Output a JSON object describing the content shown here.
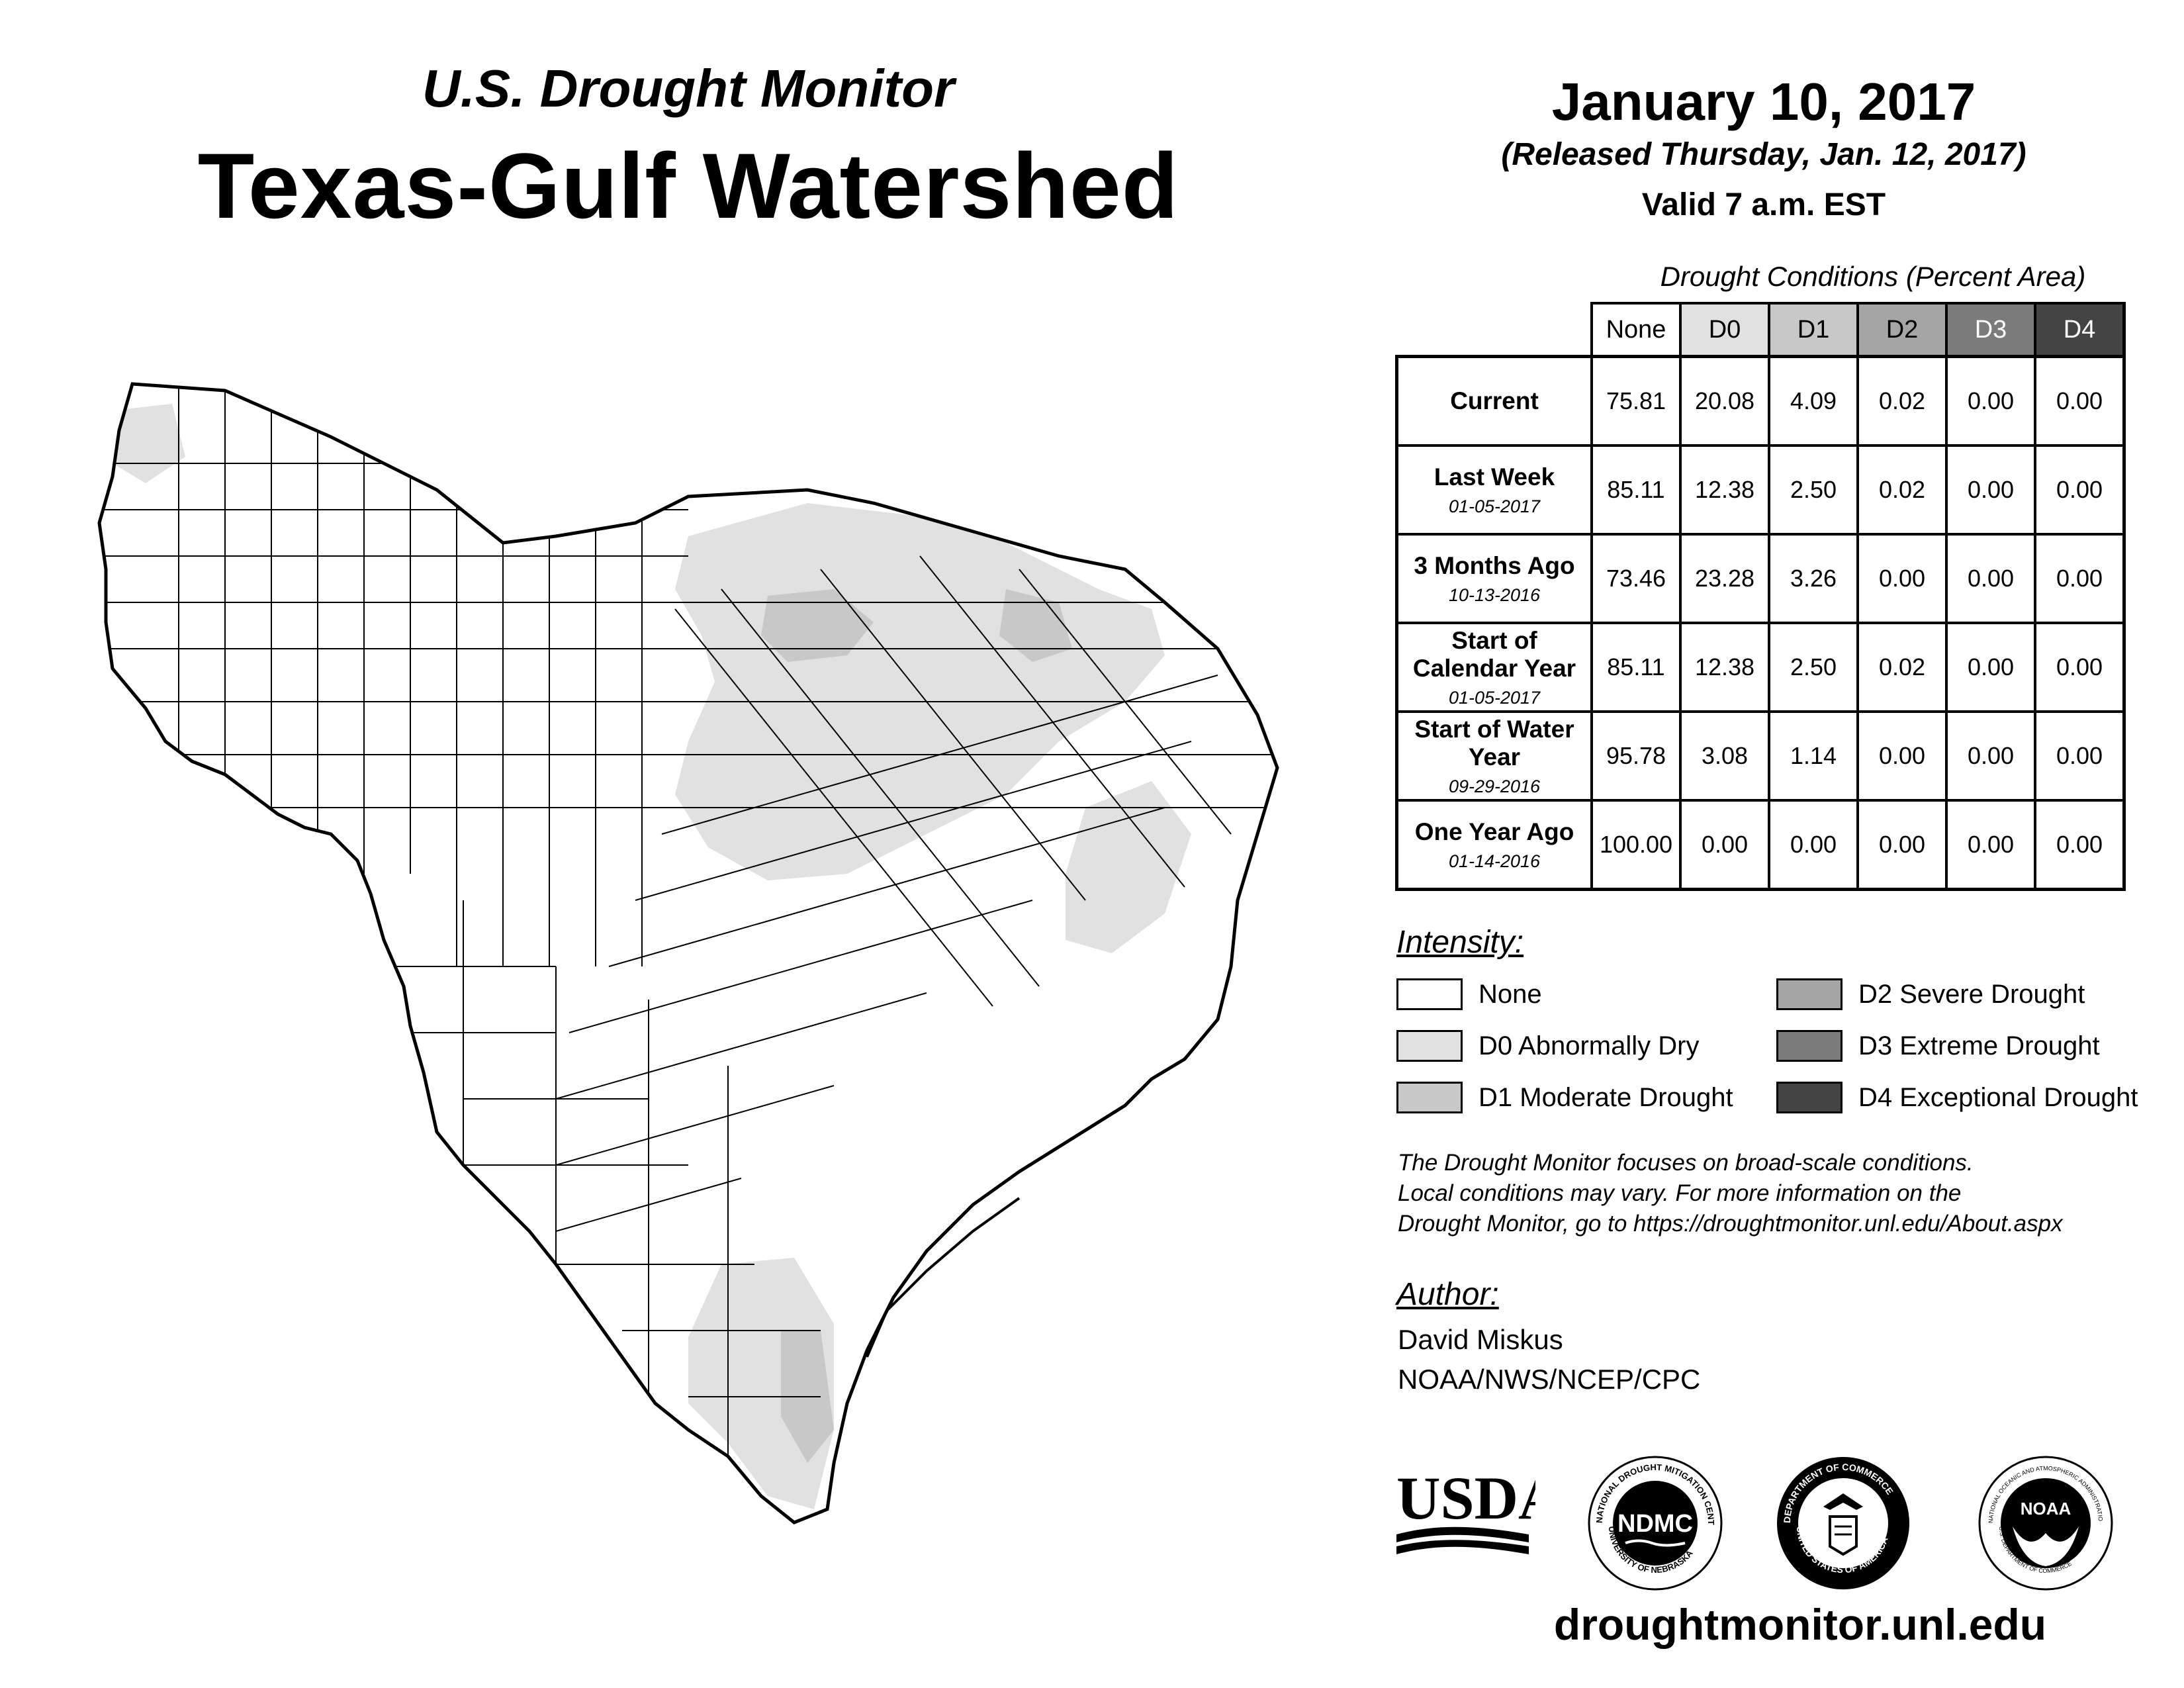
{
  "header": {
    "subtitle": "U.S. Drought Monitor",
    "title": "Texas-Gulf Watershed",
    "date": "January 10, 2017",
    "released": "(Released Thursday, Jan. 12, 2017)",
    "valid": "Valid 7 a.m. EST"
  },
  "table": {
    "caption": "Drought Conditions (Percent Area)",
    "columns": [
      "None",
      "D0",
      "D1",
      "D2",
      "D3",
      "D4"
    ],
    "rows": [
      {
        "label": "Current",
        "date": "",
        "values": [
          "75.81",
          "20.08",
          "4.09",
          "0.02",
          "0.00",
          "0.00"
        ]
      },
      {
        "label": "Last Week",
        "date": "01-05-2017",
        "values": [
          "85.11",
          "12.38",
          "2.50",
          "0.02",
          "0.00",
          "0.00"
        ]
      },
      {
        "label": "3 Months Ago",
        "date": "10-13-2016",
        "values": [
          "73.46",
          "23.28",
          "3.26",
          "0.00",
          "0.00",
          "0.00"
        ]
      },
      {
        "label": "Start of Calendar Year",
        "date": "01-05-2017",
        "values": [
          "85.11",
          "12.38",
          "2.50",
          "0.02",
          "0.00",
          "0.00"
        ]
      },
      {
        "label": "Start of Water Year",
        "date": "09-29-2016",
        "values": [
          "95.78",
          "3.08",
          "1.14",
          "0.00",
          "0.00",
          "0.00"
        ]
      },
      {
        "label": "One Year Ago",
        "date": "01-14-2016",
        "values": [
          "100.00",
          "0.00",
          "0.00",
          "0.00",
          "0.00",
          "0.00"
        ]
      }
    ]
  },
  "legend": {
    "title": "Intensity:",
    "items": [
      {
        "label": "None",
        "color": "#ffffff"
      },
      {
        "label": "D0 Abnormally Dry",
        "color": "#e1e1e1"
      },
      {
        "label": "D1 Moderate Drought",
        "color": "#c8c8c8"
      },
      {
        "label": "D2 Severe Drought",
        "color": "#a5a5a5"
      },
      {
        "label": "D3 Extreme Drought",
        "color": "#7b7b7b"
      },
      {
        "label": "D4 Exceptional Drought",
        "color": "#444444"
      }
    ]
  },
  "header_colors": [
    "#ffffff",
    "#e1e1e1",
    "#c8c8c8",
    "#a5a5a5",
    "#7b7b7b",
    "#444444"
  ],
  "note": {
    "line1": "The Drought Monitor focuses on broad-scale conditions.",
    "line2": "Local conditions may vary. For more information on the",
    "line3": "Drought Monitor, go to https://droughtmonitor.unl.edu/About.aspx"
  },
  "author": {
    "title": "Author:",
    "name": "David Miskus",
    "org": "NOAA/NWS/NCEP/CPC"
  },
  "logos": {
    "usda": "USDA",
    "ndmc": "NDMC",
    "ndmc_ring_top": "NATIONAL DROUGHT MITIGATION CENTER",
    "ndmc_ring_bottom": "UNIVERSITY OF NEBRASKA",
    "doc_ring_top": "DEPARTMENT OF COMMERCE",
    "doc_ring_bottom": "UNITED STATES OF AMERICA",
    "noaa": "NOAA",
    "noaa_ring_top": "NATIONAL OCEANIC AND ATMOSPHERIC ADMINISTRATION",
    "noaa_ring_bottom": "U.S. DEPARTMENT OF COMMERCE"
  },
  "footer": {
    "url": "droughtmonitor.unl.edu"
  }
}
